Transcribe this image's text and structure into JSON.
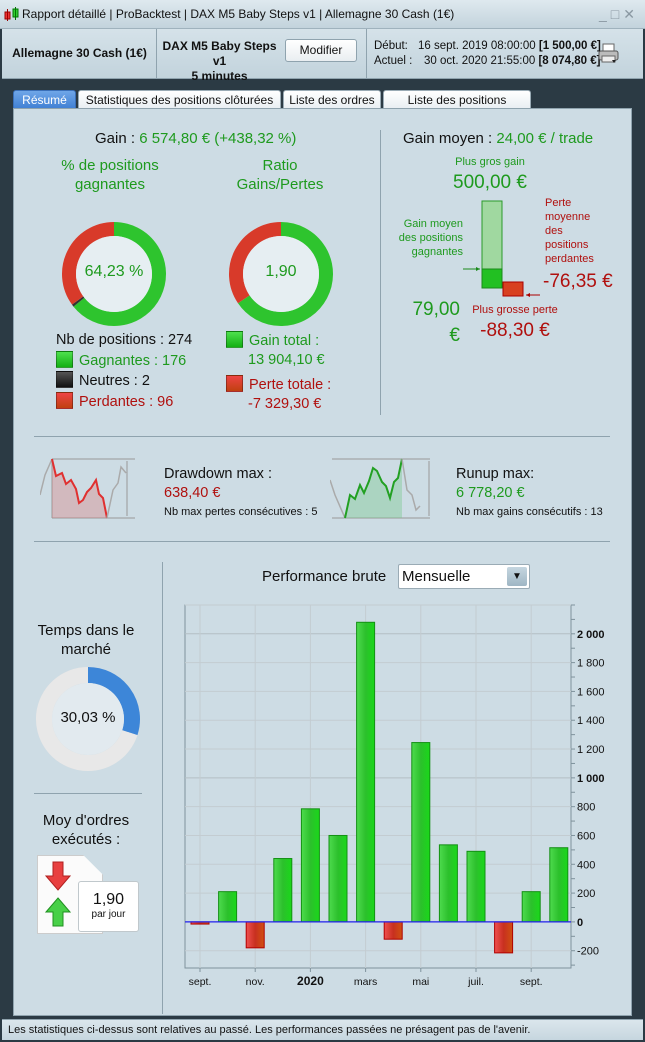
{
  "window": {
    "title_parts": [
      "Rapport détaillé",
      "ProBacktest",
      "DAX M5 Baby Steps v1",
      "Allemagne 30 Cash (1€)"
    ],
    "controls": [
      "_",
      "□",
      "✕"
    ]
  },
  "header": {
    "instrument": "Allemagne 30 Cash (1€)",
    "strategy": "DAX M5 Baby Steps v1",
    "timeframe": "5 minutes",
    "modify_label": "Modifier",
    "start_label": "Début:",
    "start_date": "16 sept. 2019 08:00:00",
    "start_capital": "[1 500,00 €]",
    "current_label": "Actuel :",
    "current_date": "30 oct. 2020 21:55:00",
    "current_capital": "[8 074,80 €]",
    "print_icon": "printer-icon"
  },
  "tabs": [
    {
      "label": "Résumé",
      "active": true
    },
    {
      "label": "Statistiques des positions clôturées"
    },
    {
      "label": "Liste des ordres"
    },
    {
      "label": "Liste des positions clôturées"
    }
  ],
  "summary": {
    "gain_label": "Gain : ",
    "gain_value": "6 574,80 € (+438,32 %)",
    "win_pct_title": "% de positions gagnantes",
    "win_pct": "64,23 %",
    "win_fraction": 0.6423,
    "neutral_fraction": 0.0073,
    "ratio_title": "Ratio Gains/Pertes",
    "ratio": "1,90",
    "ratio_green_fraction": 0.655,
    "nb_positions": "Nb de positions : 274",
    "winners": "Gagnantes : 176",
    "neutral": "Neutres : 2",
    "losers": "Perdantes : 96",
    "gain_total_label": "Gain total :",
    "gain_total": "13 904,10 €",
    "loss_total_label": "Perte totale :",
    "loss_total": "-7 329,30 €",
    "avg_gain_label": "Gain moyen : ",
    "avg_gain_value": "24,00 € / trade",
    "biggest_gain_label": "Plus gros gain",
    "biggest_gain": "500,00 €",
    "avg_win_label": "Gain moyen des positions gagnantes",
    "avg_win": "79,00 €",
    "avg_loss_label": "Perte moyenne des positions perdantes",
    "avg_loss": "-76,35 €",
    "biggest_loss_label": "Plus grosse perte",
    "biggest_loss": "-88,30 €"
  },
  "drawdown": {
    "label": "Drawdown max :",
    "value": "638,40 €",
    "consecutive": "Nb max pertes consécutives : 5"
  },
  "runup": {
    "label": "Runup max:",
    "value": "6 778,20 €",
    "consecutive": "Nb max gains consécutifs : 13"
  },
  "market_time": {
    "title": "Temps dans le marché",
    "value": "30,03 %",
    "fraction": 0.3003
  },
  "orders": {
    "title": "Moy d'ordres exécutés :",
    "value": "1,90",
    "unit": "par jour"
  },
  "perf": {
    "label": "Performance brute",
    "selected": "Mensuelle"
  },
  "chart_data": {
    "type": "bar",
    "categories": [
      "2019-09",
      "2019-10",
      "2019-11",
      "2019-12",
      "2020-01",
      "2020-02",
      "2020-03",
      "2020-04",
      "2020-05",
      "2020-06",
      "2020-07",
      "2020-08",
      "2020-09",
      "2020-10"
    ],
    "values": [
      -15,
      210,
      -180,
      440,
      785,
      600,
      2080,
      -120,
      1245,
      535,
      490,
      -215,
      210,
      515
    ],
    "x_tick_labels": [
      {
        "i": 0,
        "label": "sept."
      },
      {
        "i": 2,
        "label": "nov."
      },
      {
        "i": 4,
        "label": "2020",
        "bold": true
      },
      {
        "i": 6,
        "label": "mars"
      },
      {
        "i": 8,
        "label": "mai"
      },
      {
        "i": 10,
        "label": "juil."
      },
      {
        "i": 12,
        "label": "sept."
      }
    ],
    "y_ticks": [
      -200,
      0,
      200,
      400,
      600,
      800,
      1000,
      1200,
      1400,
      1600,
      1800,
      2000
    ],
    "y_tick_labels": [
      "-200",
      "0",
      "200",
      "400",
      "600",
      "800",
      "1 000",
      "1 200",
      "1 400",
      "1 600",
      "1 800",
      "2 000"
    ],
    "ylim": [
      -320,
      2200
    ],
    "grid": true,
    "positive_color": "#22cc22",
    "negative_color": "#dd3333",
    "zero_line_color": "#2222ee"
  },
  "footer": "Les statistiques ci-dessus sont relatives au passé. Les performances passées ne présagent pas de l'avenir."
}
